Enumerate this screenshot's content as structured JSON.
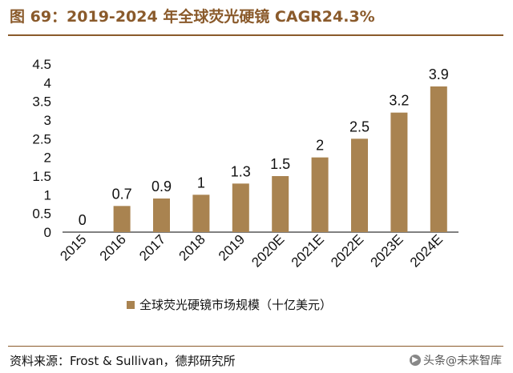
{
  "figure": {
    "title": "图 69：2019-2024 年全球荧光硬镜 CAGR24.3%",
    "source": "资料来源：Frost & Sullivan，德邦研究所",
    "watermark": "头条@未来智库"
  },
  "chart_data": {
    "type": "bar",
    "categories": [
      "2015",
      "2016",
      "2017",
      "2018",
      "2019",
      "2020E",
      "2021E",
      "2022E",
      "2023E",
      "2024E"
    ],
    "series": [
      {
        "name": "全球荧光硬镜市场规模（十亿美元）",
        "values": [
          0,
          0.7,
          0.9,
          1,
          1.3,
          1.5,
          2,
          2.5,
          3.2,
          3.9
        ],
        "labels": [
          "0",
          "0.7",
          "0.9",
          "1",
          "1.3",
          "1.5",
          "2",
          "2.5",
          "3.2",
          "3.9"
        ]
      }
    ],
    "ylim": [
      0,
      4.5
    ],
    "yticks": [
      0,
      0.5,
      1,
      1.5,
      2,
      2.5,
      3,
      3.5,
      4,
      4.5
    ],
    "ytick_labels": [
      "0",
      "0.5",
      "1",
      "1.5",
      "2",
      "2.5",
      "3",
      "3.5",
      "4",
      "4.5"
    ],
    "xlabel": "",
    "ylabel": "",
    "grid": false,
    "legend_position": "bottom-center",
    "bar_color": "#a98350"
  }
}
